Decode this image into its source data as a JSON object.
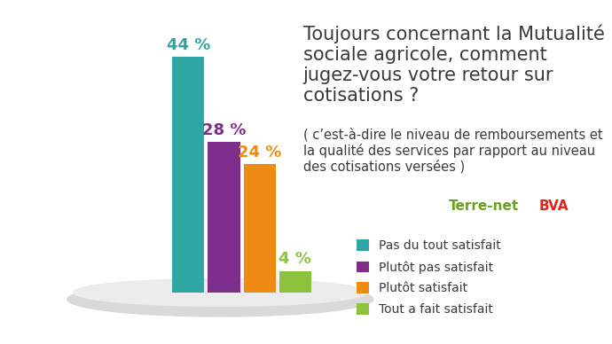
{
  "chart_data": {
    "type": "bar",
    "title": "Toujours concernant la Mutualité sociale agricole, comment jugez-vous votre retour sur cotisations ?",
    "subtitle": "( c’est-à-dire le niveau de remboursements et la qualité des services par rapport au niveau des cotisations versées )",
    "categories": [
      "Pas du tout satisfait",
      "Plutôt pas satisfait",
      "Plutôt satisfait",
      "Tout a fait satisfait"
    ],
    "values": [
      44,
      28,
      24,
      4
    ],
    "value_labels": [
      "44 %",
      "28 %",
      "24 %",
      "4 %"
    ],
    "colors": [
      "#2ea7a4",
      "#7d2e8c",
      "#ef8a12",
      "#8dc23f"
    ],
    "data_labels": true,
    "tick_labels": false,
    "legend": "lower left",
    "annotations": [
      "Terre-net",
      "BVA"
    ]
  }
}
